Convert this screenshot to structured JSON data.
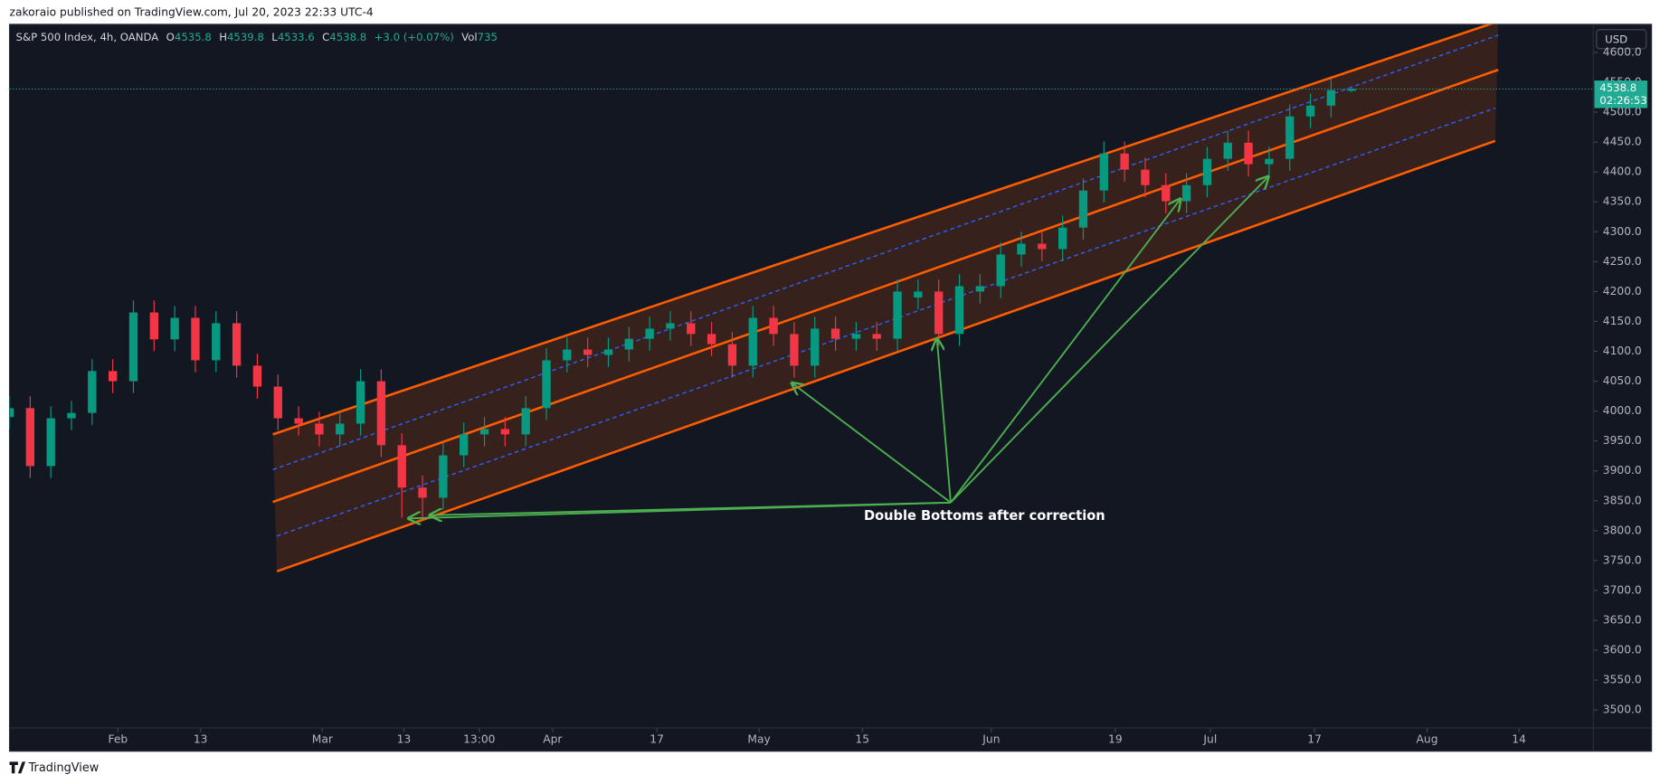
{
  "header": {
    "text": "zakoraio published on TradingView.com, Jul 20, 2023 22:33 UTC-4"
  },
  "footer": {
    "brand": "TradingView"
  },
  "chart_data": {
    "type": "candlestick",
    "symbol": "S&P 500 Index, 4h, OANDA",
    "legend": [
      {
        "label": "O",
        "value": 4535.8
      },
      {
        "label": "H",
        "value": 4539.8
      },
      {
        "label": "L",
        "value": 4533.6
      },
      {
        "label": "C",
        "value": 4538.8
      }
    ],
    "change": "+3.0 (+0.07%)",
    "volume": {
      "label": "Vol",
      "value": 735
    },
    "currency": "USD",
    "countdown": "02:26:53",
    "annotation": "Double Bottoms after correction",
    "up_color": "#089981",
    "down_color": "#f23645",
    "x": [
      0,
      2,
      4,
      6,
      8,
      10,
      12,
      14,
      16,
      18,
      20,
      22,
      24,
      26,
      28,
      30,
      32,
      34,
      36,
      38,
      40,
      42,
      44,
      46,
      48,
      50,
      52,
      54,
      56,
      58,
      60,
      62,
      64,
      66,
      68,
      70,
      72,
      74,
      76,
      78,
      80,
      82,
      84,
      86,
      88,
      90,
      92,
      94,
      96,
      98,
      100,
      102,
      104,
      106,
      108,
      110,
      112,
      114,
      116,
      118,
      120,
      122,
      124,
      126,
      128,
      130
    ],
    "open": [
      3990,
      4005,
      3908,
      3988,
      3997,
      4067,
      4050,
      4165,
      4120,
      4156,
      4085,
      4147,
      4076,
      4041,
      3988,
      3979,
      3961,
      3979,
      4050,
      3943,
      3872,
      3855,
      3926,
      3961,
      3970,
      3961,
      4005,
      4085,
      4103,
      4094,
      4103,
      4121,
      4138,
      4147,
      4129,
      4112,
      4076,
      4156,
      4129,
      4076,
      4138,
      4121,
      4129,
      4121,
      4190,
      4200,
      4129,
      4200,
      4209,
      4262,
      4280,
      4271,
      4307,
      4369,
      4431,
      4404,
      4378,
      4351,
      4378,
      4422,
      4449,
      4413,
      4422,
      4493,
      4511,
      4535.8
    ],
    "high": [
      4025,
      4025,
      4008,
      4017,
      4087,
      4087,
      4185,
      4185,
      4176,
      4176,
      4167,
      4167,
      4096,
      4061,
      4008,
      3999,
      3999,
      4070,
      4070,
      3963,
      3892,
      3946,
      3981,
      3990,
      3990,
      4025,
      4105,
      4123,
      4123,
      4123,
      4141,
      4158,
      4167,
      4167,
      4149,
      4132,
      4176,
      4176,
      4149,
      4158,
      4158,
      4149,
      4149,
      4220,
      4220,
      4220,
      4229,
      4229,
      4282,
      4300,
      4300,
      4327,
      4389,
      4451,
      4451,
      4424,
      4398,
      4398,
      4442,
      4469,
      4469,
      4442,
      4513,
      4531,
      4557,
      4539.8
    ],
    "low": [
      3970,
      3888,
      3888,
      3968,
      3977,
      4030,
      4030,
      4100,
      4100,
      4065,
      4065,
      4056,
      4021,
      3968,
      3959,
      3941,
      3941,
      3959,
      3923,
      3822,
      3820,
      3835,
      3906,
      3941,
      3941,
      3941,
      3985,
      4065,
      4074,
      4074,
      4083,
      4101,
      4118,
      4109,
      4092,
      4056,
      4056,
      4109,
      4056,
      4056,
      4101,
      4101,
      4101,
      4101,
      4170,
      4109,
      4109,
      4180,
      4189,
      4242,
      4251,
      4251,
      4287,
      4349,
      4384,
      4358,
      4331,
      4331,
      4358,
      4402,
      4393,
      4393,
      4402,
      4473,
      4491,
      4533.6
    ],
    "close": [
      4005,
      3908,
      3988,
      3997,
      4067,
      4050,
      4165,
      4120,
      4156,
      4085,
      4147,
      4076,
      4041,
      3988,
      3979,
      3961,
      3979,
      4050,
      3943,
      3872,
      3855,
      3926,
      3961,
      3970,
      3961,
      4005,
      4085,
      4103,
      4094,
      4103,
      4121,
      4138,
      4147,
      4129,
      4112,
      4076,
      4156,
      4129,
      4076,
      4138,
      4121,
      4129,
      4121,
      4200,
      4200,
      4129,
      4209,
      4209,
      4262,
      4280,
      4271,
      4307,
      4369,
      4431,
      4404,
      4378,
      4351,
      4378,
      4422,
      4449,
      4413,
      4422,
      4493,
      4511,
      4537,
      4538.8
    ],
    "channel": [
      {
        "from": [
          25.5,
          3961
        ],
        "to": [
          144.2,
          4652
        ],
        "color": "#ff5d00",
        "dash": false
      },
      {
        "from": [
          25.5,
          3902
        ],
        "to": [
          144.2,
          4629
        ],
        "color": "#2962ff",
        "dash": true
      },
      {
        "from": [
          25.5,
          3848
        ],
        "to": [
          144.2,
          4571
        ],
        "color": "#ff5d00",
        "dash": false
      },
      {
        "from": [
          25.9,
          3791
        ],
        "to": [
          143.9,
          4507
        ],
        "color": "#2962ff",
        "dash": true
      },
      {
        "from": [
          25.9,
          3732
        ],
        "to": [
          143.9,
          4452
        ],
        "color": "#ff5d00",
        "dash": false
      }
    ],
    "xlim": [
      0,
      153.4
    ],
    "xticks": [
      {
        "value": 10.5,
        "label": "Feb"
      },
      {
        "value": 18.5,
        "label": "13"
      },
      {
        "value": 30.3,
        "label": "Mar"
      },
      {
        "value": 38.2,
        "label": "13"
      },
      {
        "value": 45.5,
        "label": "13:00"
      },
      {
        "value": 52.6,
        "label": "Apr"
      },
      {
        "value": 62.7,
        "label": "17"
      },
      {
        "value": 72.6,
        "label": "May"
      },
      {
        "value": 82.6,
        "label": "15"
      },
      {
        "value": 95.1,
        "label": "Jun"
      },
      {
        "value": 107.1,
        "label": "19"
      },
      {
        "value": 116.3,
        "label": "Jul"
      },
      {
        "value": 126.4,
        "label": "17"
      },
      {
        "value": 137.3,
        "label": "Aug"
      },
      {
        "value": 146.2,
        "label": "14"
      }
    ],
    "ylim": [
      3470,
      4647
    ],
    "yticks": [
      {
        "value": 3500,
        "label": "3500.0"
      },
      {
        "value": 3550,
        "label": "3550.0"
      },
      {
        "value": 3600,
        "label": "3600.0"
      },
      {
        "value": 3650,
        "label": "3650.0"
      },
      {
        "value": 3700,
        "label": "3700.0"
      },
      {
        "value": 3750,
        "label": "3750.0"
      },
      {
        "value": 3800,
        "label": "3800.0"
      },
      {
        "value": 3850,
        "label": "3850.0"
      },
      {
        "value": 3900,
        "label": "3900.0"
      },
      {
        "value": 3950,
        "label": "3950.0"
      },
      {
        "value": 4000,
        "label": "4000.0"
      },
      {
        "value": 4050,
        "label": "4050.0"
      },
      {
        "value": 4100,
        "label": "4100.0"
      },
      {
        "value": 4150,
        "label": "4150.0"
      },
      {
        "value": 4200,
        "label": "4200.0"
      },
      {
        "value": 4250,
        "label": "4250.0"
      },
      {
        "value": 4300,
        "label": "4300.0"
      },
      {
        "value": 4350,
        "label": "4350.0"
      },
      {
        "value": 4400,
        "label": "4400.0"
      },
      {
        "value": 4450,
        "label": "4450.0"
      },
      {
        "value": 4500,
        "label": "4500.0"
      },
      {
        "value": 4550,
        "label": "4550.0"
      },
      {
        "value": 4600,
        "label": "4600.0"
      }
    ],
    "grid": false
  }
}
